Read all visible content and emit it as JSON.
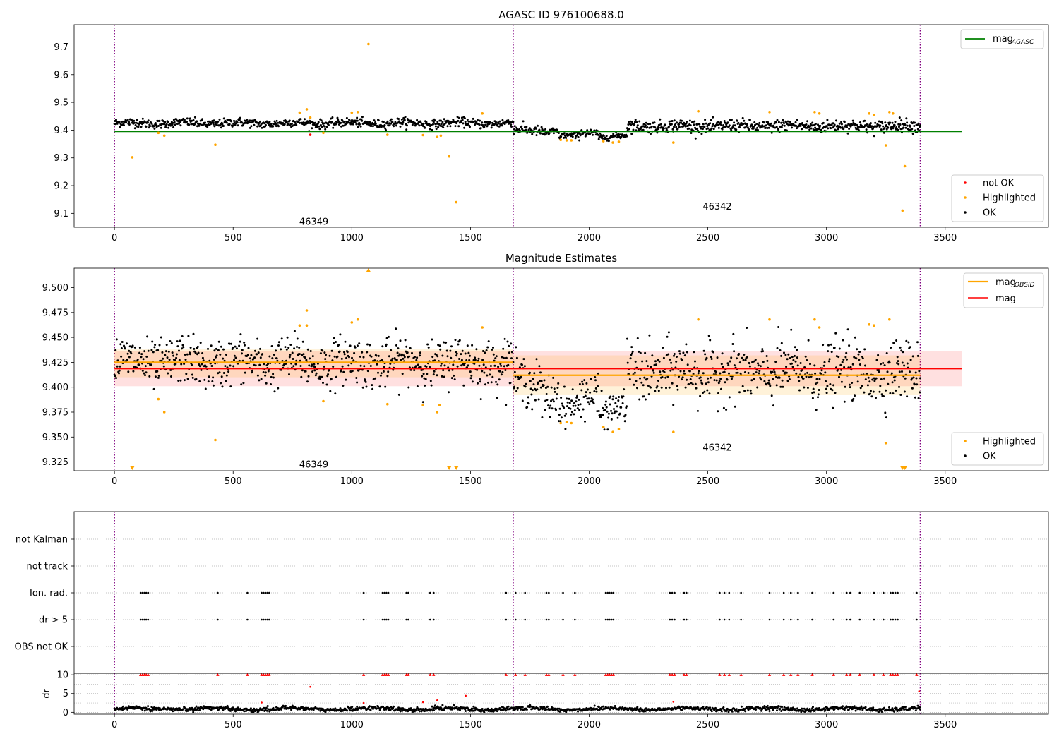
{
  "figure_title": "AGASC ID 976100688.0",
  "colors": {
    "ok": "#000000",
    "highlighted": "#ffa500",
    "not_ok": "#ff0000",
    "mag_agasc": "#008000",
    "mag_obsid": "#ffa500",
    "mag": "#ff0000",
    "obsid_boundary": "#800080",
    "flag_grid": "#b0b0b0"
  },
  "chart_data": [
    {
      "type": "scatter",
      "title": "AGASC ID 976100688.0",
      "xlim": [
        -170,
        3935
      ],
      "ylim": [
        9.05,
        9.78
      ],
      "x_ticks": [
        0,
        500,
        1000,
        1500,
        2000,
        2500,
        3000,
        3500
      ],
      "x_tick_labels": [
        "0",
        "500",
        "1000",
        "1500",
        "2000",
        "2500",
        "3000",
        "3500"
      ],
      "y_ticks": [
        9.1,
        9.2,
        9.3,
        9.4,
        9.5,
        9.6,
        9.7
      ],
      "y_tick_labels": [
        "9.1",
        "9.2",
        "9.3",
        "9.4",
        "9.5",
        "9.6",
        "9.7"
      ],
      "legend_top": {
        "placement": "upper-right",
        "entries": [
          {
            "label": "mag",
            "subscript": "AGASC",
            "kind": "line",
            "color": "#008000"
          }
        ]
      },
      "legend_bottom": {
        "placement": "lower-right",
        "entries": [
          {
            "label": "not OK",
            "kind": "marker",
            "color": "#ff0000"
          },
          {
            "label": "Highlighted",
            "kind": "marker",
            "color": "#ffa500"
          },
          {
            "label": "OK",
            "kind": "marker",
            "color": "#000000"
          }
        ]
      },
      "obsid_boundaries": [
        0,
        1680,
        3395
      ],
      "obsid_labels": [
        {
          "text": "46349",
          "x": 840,
          "y": 9.07
        },
        {
          "text": "46342",
          "x": 2540,
          "y": 9.125
        }
      ],
      "mag_agasc": {
        "value": 9.395,
        "x_range": [
          0,
          3570
        ]
      },
      "ok_model": {
        "x_range": [
          0,
          3395
        ],
        "segments": [
          {
            "x": [
              0,
              1680
            ],
            "mean": 9.425,
            "scatter": 0.008
          },
          {
            "x": [
              1680,
              1800
            ],
            "mean": 9.4,
            "scatter": 0.009
          },
          {
            "x": [
              1800,
              1870
            ],
            "mean": 9.395,
            "scatter": 0.008
          },
          {
            "x": [
              1870,
              1960
            ],
            "mean": 9.377,
            "scatter": 0.006
          },
          {
            "x": [
              1960,
              2040
            ],
            "mean": 9.392,
            "scatter": 0.008
          },
          {
            "x": [
              2040,
              2160
            ],
            "mean": 9.377,
            "scatter": 0.006
          },
          {
            "x": [
              2160,
              3395
            ],
            "mean": 9.415,
            "scatter": 0.011
          }
        ]
      },
      "highlighted_points": [
        [
          75,
          9.302
        ],
        [
          185,
          9.39
        ],
        [
          210,
          9.38
        ],
        [
          425,
          9.347
        ],
        [
          780,
          9.463
        ],
        [
          810,
          9.475
        ],
        [
          825,
          9.445
        ],
        [
          880,
          9.39
        ],
        [
          1000,
          9.463
        ],
        [
          1025,
          9.465
        ],
        [
          1070,
          9.71
        ],
        [
          1150,
          9.383
        ],
        [
          1300,
          9.382
        ],
        [
          1360,
          9.375
        ],
        [
          1375,
          9.38
        ],
        [
          1410,
          9.305
        ],
        [
          1440,
          9.14
        ],
        [
          1550,
          9.46
        ],
        [
          1880,
          9.365
        ],
        [
          1905,
          9.363
        ],
        [
          1925,
          9.363
        ],
        [
          2060,
          9.36
        ],
        [
          2100,
          9.355
        ],
        [
          2125,
          9.358
        ],
        [
          2355,
          9.355
        ],
        [
          2460,
          9.468
        ],
        [
          2760,
          9.465
        ],
        [
          2950,
          9.465
        ],
        [
          2970,
          9.46
        ],
        [
          3180,
          9.46
        ],
        [
          3200,
          9.455
        ],
        [
          3250,
          9.345
        ],
        [
          3265,
          9.465
        ],
        [
          3280,
          9.46
        ],
        [
          3320,
          9.11
        ],
        [
          3330,
          9.27
        ]
      ],
      "not_ok_points": [
        [
          825,
          9.383
        ]
      ]
    },
    {
      "type": "scatter",
      "title": "Magnitude Estimates",
      "xlim": [
        -170,
        3935
      ],
      "ylim": [
        9.3162,
        9.5195
      ],
      "x_ticks": [
        0,
        500,
        1000,
        1500,
        2000,
        2500,
        3000,
        3500
      ],
      "x_tick_labels": [
        "0",
        "500",
        "1000",
        "1500",
        "2000",
        "2500",
        "3000",
        "3500"
      ],
      "y_ticks": [
        9.325,
        9.35,
        9.375,
        9.4,
        9.425,
        9.45,
        9.475,
        9.5
      ],
      "y_tick_labels": [
        "9.325",
        "9.350",
        "9.375",
        "9.400",
        "9.425",
        "9.450",
        "9.475",
        "9.500"
      ],
      "legend_top": {
        "placement": "upper-right",
        "entries": [
          {
            "label": "mag",
            "subscript": "OBSID",
            "kind": "line",
            "color": "#ffa500"
          },
          {
            "label": "mag",
            "kind": "line",
            "color": "#ff0000"
          }
        ]
      },
      "legend_bottom": {
        "placement": "lower-right",
        "entries": [
          {
            "label": "Highlighted",
            "kind": "marker",
            "color": "#ffa500"
          },
          {
            "label": "OK",
            "kind": "marker",
            "color": "#000000"
          }
        ]
      },
      "obsid_boundaries": [
        0,
        1680,
        3395
      ],
      "obsid_labels": [
        {
          "text": "46349",
          "x": 840,
          "y": 9.3225
        },
        {
          "text": "46342",
          "x": 2540,
          "y": 9.3395
        }
      ],
      "mag": {
        "value": 9.4185,
        "band": [
          9.401,
          9.436
        ],
        "x_range": [
          0,
          3570
        ]
      },
      "mag_obsid": [
        {
          "x_range": [
            0,
            1680
          ],
          "value": 9.425,
          "band": [
            9.41,
            9.438
          ]
        },
        {
          "x_range": [
            1680,
            3395
          ],
          "value": 9.412,
          "band": [
            9.392,
            9.432
          ]
        }
      ],
      "ok_model": {
        "x_range": [
          0,
          3395
        ],
        "segments": [
          {
            "x": [
              0,
              1680
            ],
            "mean": 9.425,
            "scatter": 0.012
          },
          {
            "x": [
              1680,
              1800
            ],
            "mean": 9.405,
            "scatter": 0.012
          },
          {
            "x": [
              1800,
              1870
            ],
            "mean": 9.392,
            "scatter": 0.012
          },
          {
            "x": [
              1870,
              1960
            ],
            "mean": 9.378,
            "scatter": 0.008
          },
          {
            "x": [
              1960,
              2040
            ],
            "mean": 9.395,
            "scatter": 0.012
          },
          {
            "x": [
              2040,
              2160
            ],
            "mean": 9.378,
            "scatter": 0.008
          },
          {
            "x": [
              2160,
              3395
            ],
            "mean": 9.415,
            "scatter": 0.015
          }
        ]
      },
      "highlighted_points": [
        [
          185,
          9.388
        ],
        [
          210,
          9.375
        ],
        [
          425,
          9.347
        ],
        [
          780,
          9.462
        ],
        [
          810,
          9.477
        ],
        [
          810,
          9.462
        ],
        [
          880,
          9.386
        ],
        [
          1000,
          9.465
        ],
        [
          1025,
          9.468
        ],
        [
          1150,
          9.383
        ],
        [
          1300,
          9.382
        ],
        [
          1360,
          9.375
        ],
        [
          1370,
          9.382
        ],
        [
          1550,
          9.46
        ],
        [
          1880,
          9.364
        ],
        [
          1905,
          9.365
        ],
        [
          1925,
          9.364
        ],
        [
          2060,
          9.36
        ],
        [
          2100,
          9.355
        ],
        [
          2125,
          9.358
        ],
        [
          2355,
          9.355
        ],
        [
          2460,
          9.468
        ],
        [
          2760,
          9.468
        ],
        [
          2950,
          9.468
        ],
        [
          2970,
          9.46
        ],
        [
          3180,
          9.463
        ],
        [
          3200,
          9.462
        ],
        [
          3250,
          9.344
        ],
        [
          3265,
          9.468
        ]
      ],
      "off_scale_low": [
        75,
        1410,
        1440,
        3320,
        3330
      ],
      "off_scale_high": [
        1070
      ]
    },
    {
      "type": "scatter",
      "title": "",
      "y_categories": [
        "not Kalman",
        "not track",
        "Ion. rad.",
        "dr > 5",
        "OBS not OK"
      ],
      "xlim": [
        -170,
        3935
      ],
      "flag_x_positions": [
        110,
        118,
        126,
        134,
        142,
        435,
        560,
        620,
        628,
        636,
        644,
        652,
        1050,
        1130,
        1138,
        1146,
        1154,
        1230,
        1238,
        1330,
        1345,
        1650,
        1690,
        1730,
        1820,
        1830,
        1890,
        1940,
        2070,
        2078,
        2086,
        2094,
        2102,
        2340,
        2350,
        2360,
        2400,
        2410,
        2550,
        2570,
        2590,
        2640,
        2760,
        2820,
        2850,
        2880,
        2940,
        3030,
        3085,
        3100,
        3140,
        3200,
        3240,
        3270,
        3280,
        3290,
        3300,
        3380
      ]
    },
    {
      "type": "scatter",
      "title": "",
      "ylabel": "dr",
      "xlim": [
        -170,
        3935
      ],
      "ylim": [
        -0.5,
        10.4
      ],
      "x_ticks": [
        0,
        500,
        1000,
        1500,
        2000,
        2500,
        3000,
        3500
      ],
      "x_tick_labels": [
        "0",
        "500",
        "1000",
        "1500",
        "2000",
        "2500",
        "3000",
        "3500"
      ],
      "y_ticks": [
        0,
        5,
        10
      ],
      "y_tick_labels": [
        "0",
        "5",
        "10"
      ],
      "capped_value": 10,
      "outliers": [
        [
          825,
          6.8
        ],
        [
          1360,
          3.2
        ],
        [
          1480,
          4.4
        ],
        [
          1300,
          2.7
        ],
        [
          1050,
          2.5
        ],
        [
          2355,
          2.8
        ],
        [
          620,
          2.6
        ],
        [
          3390,
          5.6
        ]
      ],
      "background": {
        "x_range": [
          0,
          3395
        ],
        "mean": 0.9,
        "scatter": 0.4
      }
    }
  ]
}
